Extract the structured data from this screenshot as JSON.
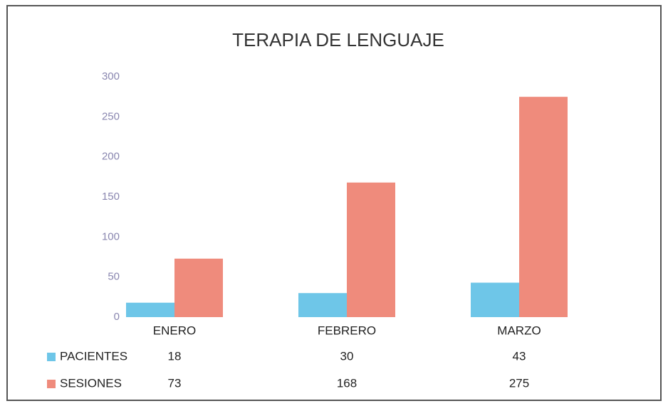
{
  "chart_data": {
    "type": "bar",
    "title": "TERAPIA DE LENGUAJE",
    "categories": [
      "ENERO",
      "FEBRERO",
      "MARZO"
    ],
    "series": [
      {
        "name": "PACIENTES",
        "color": "#6ec6e8",
        "values": [
          18,
          30,
          43
        ]
      },
      {
        "name": "SESIONES",
        "color": "#ef8b7c",
        "values": [
          73,
          168,
          275
        ]
      }
    ],
    "ylim": [
      0,
      300
    ],
    "yticks": [
      0,
      50,
      100,
      150,
      200,
      250,
      300
    ],
    "grid": false
  }
}
